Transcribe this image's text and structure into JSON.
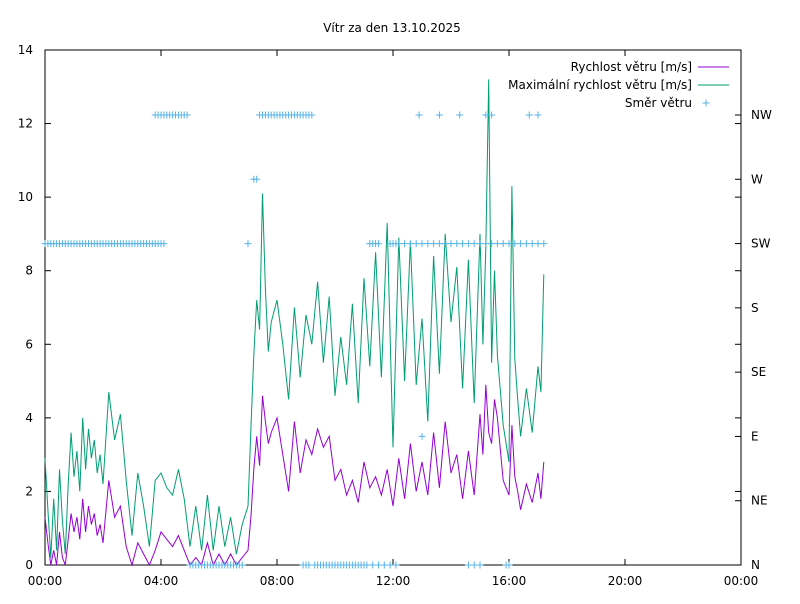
{
  "chart_data": {
    "type": "line",
    "title": "Vítr za den 13.10.2025",
    "x_range_hours": [
      0,
      24
    ],
    "x_ticks": [
      "00:00",
      "04:00",
      "08:00",
      "12:00",
      "16:00",
      "20:00",
      "00:00"
    ],
    "ylim": [
      0,
      14
    ],
    "y_ticks": [
      "0",
      "2",
      "4",
      "6",
      "8",
      "10",
      "12",
      "14"
    ],
    "y2_ticks": [
      "N",
      "NE",
      "E",
      "SE",
      "S",
      "SW",
      "W",
      "NW"
    ],
    "grid": false,
    "legend_position": "top-right",
    "series": [
      {
        "name": "Rychlost větru [m/s]",
        "color": "#9400d3",
        "x_hours": [
          0.0,
          0.1,
          0.2,
          0.3,
          0.4,
          0.5,
          0.6,
          0.7,
          0.8,
          0.9,
          1.0,
          1.1,
          1.2,
          1.3,
          1.4,
          1.5,
          1.6,
          1.7,
          1.8,
          1.9,
          2.0,
          2.2,
          2.4,
          2.6,
          2.8,
          3.0,
          3.2,
          3.4,
          3.6,
          3.8,
          4.0,
          4.2,
          4.4,
          4.6,
          4.8,
          5.0,
          5.2,
          5.4,
          5.6,
          5.8,
          6.0,
          6.2,
          6.4,
          6.6,
          6.8,
          7.0,
          7.1,
          7.2,
          7.3,
          7.4,
          7.5,
          7.6,
          7.7,
          7.8,
          8.0,
          8.2,
          8.4,
          8.6,
          8.8,
          9.0,
          9.2,
          9.4,
          9.6,
          9.8,
          10.0,
          10.2,
          10.4,
          10.6,
          10.8,
          11.0,
          11.2,
          11.4,
          11.6,
          11.8,
          12.0,
          12.2,
          12.4,
          12.6,
          12.8,
          13.0,
          13.2,
          13.4,
          13.6,
          13.8,
          14.0,
          14.2,
          14.4,
          14.6,
          14.8,
          15.0,
          15.1,
          15.2,
          15.3,
          15.4,
          15.5,
          15.6,
          15.8,
          16.0,
          16.1,
          16.2,
          16.3,
          16.4,
          16.6,
          16.8,
          17.0,
          17.1,
          17.2
        ],
        "values": [
          1.3,
          0.6,
          0.0,
          0.4,
          0.0,
          0.9,
          0.2,
          0.0,
          0.7,
          1.4,
          0.9,
          1.3,
          0.7,
          1.8,
          0.9,
          1.6,
          1.1,
          1.4,
          0.8,
          1.1,
          0.6,
          2.3,
          1.3,
          1.6,
          0.5,
          0.0,
          0.6,
          0.3,
          0.0,
          0.4,
          0.9,
          0.7,
          0.5,
          0.8,
          0.4,
          0.0,
          0.2,
          0.0,
          0.6,
          0.0,
          0.3,
          0.0,
          0.3,
          0.0,
          0.2,
          0.4,
          1.3,
          2.6,
          3.5,
          2.7,
          4.6,
          3.9,
          3.3,
          3.6,
          4.0,
          3.0,
          2.0,
          3.9,
          2.5,
          3.4,
          3.0,
          3.7,
          3.2,
          3.5,
          2.3,
          2.6,
          1.9,
          2.3,
          1.7,
          2.8,
          2.1,
          2.4,
          1.9,
          2.6,
          1.6,
          2.9,
          1.8,
          3.3,
          2.0,
          2.8,
          1.9,
          3.6,
          2.1,
          3.9,
          2.5,
          3.0,
          1.8,
          3.1,
          1.9,
          4.1,
          3.0,
          4.9,
          3.6,
          3.3,
          4.5,
          4.0,
          2.3,
          1.9,
          3.8,
          2.4,
          2.0,
          1.5,
          2.2,
          1.7,
          2.5,
          1.8,
          2.8
        ]
      },
      {
        "name": "Maximální rychlost větru [m/s]",
        "color": "#009e73",
        "x_hours": [
          0.0,
          0.1,
          0.2,
          0.3,
          0.4,
          0.5,
          0.6,
          0.7,
          0.8,
          0.9,
          1.0,
          1.1,
          1.2,
          1.3,
          1.4,
          1.5,
          1.6,
          1.7,
          1.8,
          1.9,
          2.0,
          2.2,
          2.4,
          2.6,
          2.8,
          3.0,
          3.2,
          3.4,
          3.6,
          3.8,
          4.0,
          4.2,
          4.4,
          4.6,
          4.8,
          5.0,
          5.2,
          5.4,
          5.6,
          5.8,
          6.0,
          6.2,
          6.4,
          6.6,
          6.8,
          7.0,
          7.1,
          7.2,
          7.3,
          7.4,
          7.5,
          7.6,
          7.7,
          7.8,
          8.0,
          8.2,
          8.4,
          8.6,
          8.8,
          9.0,
          9.2,
          9.4,
          9.6,
          9.8,
          10.0,
          10.2,
          10.4,
          10.6,
          10.8,
          11.0,
          11.2,
          11.4,
          11.6,
          11.8,
          12.0,
          12.2,
          12.4,
          12.6,
          12.8,
          13.0,
          13.2,
          13.4,
          13.6,
          13.8,
          14.0,
          14.2,
          14.4,
          14.6,
          14.8,
          15.0,
          15.1,
          15.2,
          15.3,
          15.4,
          15.5,
          15.6,
          15.8,
          16.0,
          16.1,
          16.2,
          16.3,
          16.4,
          16.6,
          16.8,
          17.0,
          17.1,
          17.2
        ],
        "values": [
          2.9,
          1.5,
          0.2,
          1.8,
          0.4,
          2.6,
          1.2,
          0.3,
          2.2,
          3.6,
          2.4,
          3.1,
          2.0,
          4.0,
          2.6,
          3.7,
          2.9,
          3.4,
          2.5,
          3.0,
          2.2,
          4.7,
          3.4,
          4.1,
          2.3,
          0.8,
          2.5,
          1.6,
          0.5,
          2.3,
          2.5,
          2.1,
          1.9,
          2.6,
          1.8,
          0.5,
          1.6,
          0.4,
          1.9,
          0.4,
          1.6,
          0.5,
          1.3,
          0.3,
          1.1,
          1.6,
          3.7,
          5.7,
          7.2,
          6.4,
          10.1,
          7.5,
          5.8,
          6.6,
          7.2,
          6.0,
          4.5,
          7.0,
          5.1,
          6.8,
          6.0,
          7.7,
          5.5,
          7.3,
          4.6,
          6.2,
          4.9,
          7.1,
          4.4,
          7.8,
          5.4,
          8.5,
          5.1,
          9.3,
          3.2,
          8.9,
          5.0,
          8.8,
          4.9,
          6.7,
          3.9,
          8.4,
          5.2,
          9.0,
          6.6,
          8.1,
          4.8,
          8.3,
          4.4,
          9.0,
          6.0,
          8.6,
          13.2,
          5.5,
          8.0,
          5.7,
          3.8,
          2.8,
          10.3,
          5.6,
          4.5,
          3.5,
          4.8,
          3.6,
          5.4,
          4.7,
          7.9
        ]
      },
      {
        "name": "Směr větru",
        "color": "#56b4e9",
        "marker": "+",
        "axis": "y2",
        "x_hours": [
          0.0,
          0.1,
          0.2,
          0.3,
          0.4,
          0.5,
          0.6,
          0.7,
          0.8,
          0.9,
          1.0,
          1.1,
          1.2,
          1.3,
          1.4,
          1.5,
          1.6,
          1.7,
          1.8,
          1.9,
          2.0,
          2.1,
          2.2,
          2.3,
          2.4,
          2.5,
          2.6,
          2.7,
          2.8,
          2.9,
          3.0,
          3.1,
          3.2,
          3.3,
          3.4,
          3.5,
          3.6,
          3.7,
          3.8,
          3.9,
          4.0,
          4.1,
          3.8,
          3.9,
          4.0,
          4.1,
          4.2,
          4.3,
          4.4,
          4.5,
          4.6,
          4.7,
          4.8,
          4.9,
          5.0,
          5.1,
          5.2,
          5.3,
          5.4,
          5.5,
          5.6,
          5.7,
          5.8,
          5.9,
          6.0,
          6.1,
          6.2,
          6.3,
          6.4,
          6.5,
          6.6,
          6.7,
          6.8,
          7.0,
          7.2,
          7.3,
          7.4,
          7.5,
          7.6,
          7.7,
          7.8,
          7.9,
          8.0,
          8.1,
          8.2,
          8.3,
          8.4,
          8.5,
          8.6,
          8.7,
          8.8,
          8.9,
          9.0,
          9.1,
          9.2,
          9.4,
          9.6,
          9.8,
          10.0,
          10.2,
          10.4,
          10.6,
          10.8,
          11.0,
          11.2,
          11.3,
          11.4,
          11.5,
          11.9,
          12.0,
          12.1,
          12.2,
          12.4,
          12.6,
          12.8,
          13.0,
          13.2,
          13.4,
          13.6,
          13.8,
          14.0,
          14.2,
          14.4,
          14.6,
          14.8,
          15.0,
          15.2,
          15.4,
          15.6,
          15.8,
          16.0,
          16.2,
          16.4,
          16.6,
          16.8,
          17.0,
          17.2,
          12.9,
          13.0,
          13.6,
          14.3,
          15.2,
          15.4,
          16.7,
          17.0,
          14.6,
          14.8,
          15.0,
          15.9,
          16.0,
          8.9,
          9.0,
          9.1,
          9.3,
          9.5,
          9.7,
          9.9,
          10.1,
          10.3,
          10.5,
          10.7,
          10.9,
          11.1,
          11.3,
          11.5,
          11.7,
          11.9,
          12.1
        ],
        "values": [
          "SW",
          "SW",
          "SW",
          "SW",
          "SW",
          "SW",
          "SW",
          "SW",
          "SW",
          "SW",
          "SW",
          "SW",
          "SW",
          "SW",
          "SW",
          "SW",
          "SW",
          "SW",
          "SW",
          "SW",
          "SW",
          "SW",
          "SW",
          "SW",
          "SW",
          "SW",
          "SW",
          "SW",
          "SW",
          "SW",
          "SW",
          "SW",
          "SW",
          "SW",
          "SW",
          "SW",
          "SW",
          "SW",
          "SW",
          "SW",
          "SW",
          "SW",
          "NW",
          "NW",
          "NW",
          "NW",
          "NW",
          "NW",
          "NW",
          "NW",
          "NW",
          "NW",
          "NW",
          "NW",
          "N",
          "N",
          "N",
          "N",
          "N",
          "N",
          "N",
          "N",
          "N",
          "N",
          "N",
          "N",
          "N",
          "N",
          "N",
          "N",
          "N",
          "N",
          "N",
          "SW",
          "W",
          "W",
          "NW",
          "NW",
          "NW",
          "NW",
          "NW",
          "NW",
          "NW",
          "NW",
          "NW",
          "NW",
          "NW",
          "NW",
          "NW",
          "NW",
          "NW",
          "NW",
          "NW",
          "NW",
          "NW",
          "N",
          "N",
          "N",
          "N",
          "N",
          "N",
          "N",
          "N",
          "N",
          "SW",
          "SW",
          "SW",
          "SW",
          "SW",
          "SW",
          "SW",
          "SW",
          "SW",
          "SW",
          "SW",
          "SW",
          "SW",
          "SW",
          "SW",
          "SW",
          "SW",
          "SW",
          "SW",
          "SW",
          "SW",
          "SW",
          "SW",
          "SW",
          "SW",
          "SW",
          "SW",
          "SW",
          "SW",
          "SW",
          "SW",
          "SW",
          "SW",
          "NW",
          "E",
          "NW",
          "NW",
          "NW",
          "NW",
          "NW",
          "NW",
          "N",
          "N",
          "N",
          "N",
          "N",
          "N",
          "N",
          "N",
          "N",
          "N",
          "N",
          "N",
          "N",
          "N",
          "N",
          "N",
          "N",
          "N",
          "N",
          "N",
          "N",
          "N",
          "N"
        ]
      }
    ]
  }
}
